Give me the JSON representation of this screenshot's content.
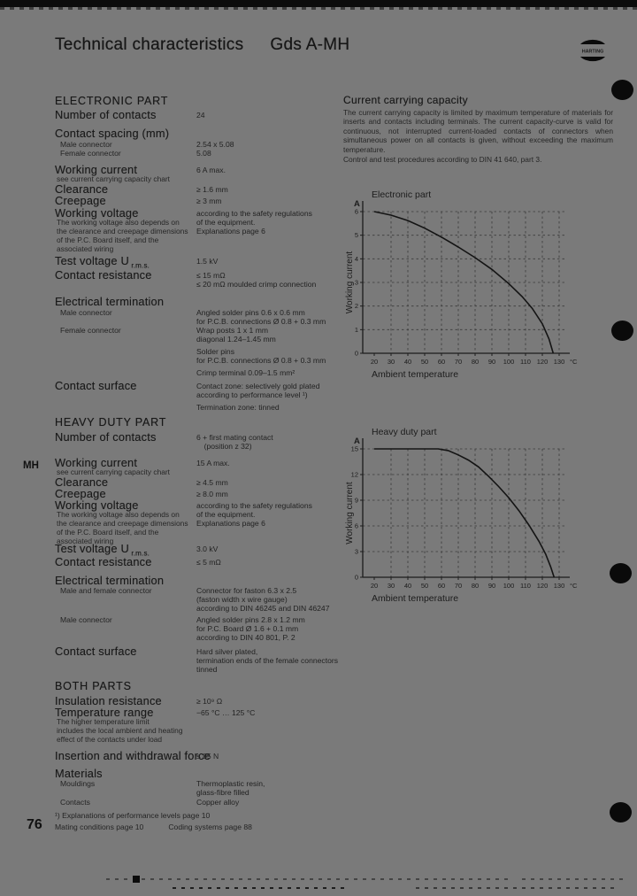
{
  "colors": {
    "background": "#7a7a7a",
    "ink": "#1d1d1d",
    "curve": "#141414",
    "grid": "#3a3a3a"
  },
  "header": {
    "title": "Technical characteristics",
    "product": "Gds A-MH",
    "logo": "HARTING"
  },
  "margin": {
    "tab": "MH",
    "page_number": "76"
  },
  "capacity_note": {
    "heading": "Current carrying capacity",
    "body": "The current carrying capacity is limited by maximum temperature of materials for inserts and contacts including terminals. The current capacity-curve is valid for continuous, not interrupted current-loaded contacts of connectors when simultaneous power on all contacts is given, without exceeding the maximum temperature.",
    "body2": "Control and test procedures according to DIN 41 640, part 3."
  },
  "sections": [
    {
      "id": "electronic",
      "heading": "ELECTRONIC PART",
      "rows": [
        {
          "label": "Number of contacts",
          "style": "lg",
          "value": [
            "24"
          ]
        },
        {
          "label": "Contact spacing (mm)",
          "style": "lg",
          "value": []
        },
        {
          "label": "Male connector",
          "style": "sm",
          "value": [
            "2.54 x 5.08"
          ]
        },
        {
          "label": "Female connector",
          "style": "sm",
          "value": [
            "5.08"
          ]
        },
        {
          "label": "Working current",
          "style": "lg",
          "note": [
            "see current carrying capacity chart"
          ],
          "value": [
            "6 A max."
          ]
        },
        {
          "label": "Clearance",
          "style": "lg",
          "value": [
            "≥ 1.6 mm"
          ]
        },
        {
          "label": "Creepage",
          "style": "lg",
          "value": [
            "≥ 3 mm"
          ]
        },
        {
          "label": "Working voltage",
          "style": "lg",
          "note": [
            "The working voltage also depends on",
            "the clearance and creepage dimensions",
            "of the P.C. Board itself, and the",
            "associated wiring"
          ],
          "value": [
            "according to the safety regulations",
            "of the equipment.",
            "Explanations page 6"
          ]
        },
        {
          "label": "Test voltage U",
          "label_sub": "r.m.s.",
          "style": "lg",
          "value": [
            "1.5 kV"
          ]
        },
        {
          "label": "Contact resistance",
          "style": "lg",
          "value": [
            "≤ 15 mΩ",
            "≤ 20 mΩ moulded crimp connection"
          ]
        },
        {
          "label": "Electrical termination",
          "style": "lg",
          "value": []
        },
        {
          "label": "Male connector",
          "style": "sm",
          "value": [
            "Angled solder pins 0.6 x 0.6 mm",
            "for P.C.B. connections Ø 0.8 + 0.3 mm"
          ]
        },
        {
          "label": "Female connector",
          "style": "sm",
          "value": [
            "Wrap posts 1 x 1 mm",
            "diagonal 1.24–1.45 mm",
            "",
            "Solder pins",
            "for P.C.B. connections Ø 0.8 + 0.3 mm",
            "",
            "Crimp terminal 0.09–1.5 mm²"
          ]
        },
        {
          "label": "Contact surface",
          "style": "lg",
          "value": [
            "Contact zone: selectively gold plated",
            "according to performance level ¹)",
            "",
            "Termination zone: tinned"
          ]
        }
      ]
    },
    {
      "id": "heavy-duty",
      "heading": "HEAVY DUTY PART",
      "rows": [
        {
          "label": "Number of contacts",
          "style": "lg",
          "value": [
            "6 + first mating contact",
            "  (position z 32)"
          ]
        },
        {
          "label": "Working current",
          "style": "lg",
          "note": [
            "see current carrying capacity chart"
          ],
          "value": [
            "15 A max."
          ]
        },
        {
          "label": "Clearance",
          "style": "lg",
          "value": [
            "≥ 4.5 mm"
          ]
        },
        {
          "label": "Creepage",
          "style": "lg",
          "value": [
            "≥ 8.0 mm"
          ]
        },
        {
          "label": "Working voltage",
          "style": "lg",
          "note": [
            "The working voltage also depends on",
            "the clearance and creepage dimensions",
            "of the P.C. Board itself, and the",
            "associated wiring"
          ],
          "value": [
            "according to the safety regulations",
            "of the equipment.",
            "Explanations page 6"
          ]
        },
        {
          "label": "Test voltage U",
          "label_sub": "r.m.s.",
          "style": "lg",
          "value": [
            "3.0 kV"
          ]
        },
        {
          "label": "Contact resistance",
          "style": "lg",
          "value": [
            "≤ 5 mΩ"
          ]
        },
        {
          "label": "Electrical termination",
          "style": "lg",
          "value": []
        },
        {
          "label": "Male and female connector",
          "style": "sm",
          "value": [
            "Connector for faston 6.3 x 2.5",
            "(faston width x wire gauge)",
            "according to DIN 46245 and DIN 46247"
          ]
        },
        {
          "label": "Male connector",
          "style": "sm",
          "value": [
            "Angled solder pins 2.8 x 1.2 mm",
            "for P.C. Board Ø 1.6 + 0.1 mm",
            "according to DIN 40 801, P. 2"
          ]
        },
        {
          "label": "Contact surface",
          "style": "lg",
          "value": [
            "Hard silver plated,",
            "termination ends of the female connectors",
            "tinned"
          ]
        }
      ]
    },
    {
      "id": "both",
      "heading": "BOTH PARTS",
      "rows": [
        {
          "label": "Insulation resistance",
          "style": "lg",
          "value": [
            "≥ 10⁹ Ω"
          ]
        },
        {
          "label": "Temperature range",
          "style": "lg",
          "note": [
            "The higher temperature limit",
            "includes the local ambient and heating",
            "effect of the contacts under load"
          ],
          "value": [
            "−65 °C … 125 °C"
          ]
        },
        {
          "label": "Insertion and withdrawal force",
          "style": "lg",
          "value": [
            "≤ 85 N"
          ]
        },
        {
          "label": "Materials",
          "style": "lg",
          "value": []
        },
        {
          "label": "Mouldings",
          "style": "sm",
          "value": [
            "Thermoplastic resin,",
            "glass-fibre filled"
          ]
        },
        {
          "label": "Contacts",
          "style": "sm",
          "value": [
            "Copper alloy"
          ]
        }
      ]
    }
  ],
  "footnote": "¹) Explanations of performance levels page 10",
  "footer_links": [
    "Mating conditions page 10",
    "Coding systems page 88"
  ],
  "chart_data": [
    {
      "type": "line",
      "title": "Electronic part",
      "ylabel": "Working current",
      "xlabel": "Ambient temperature",
      "y_unit": "A",
      "x_unit": "°C",
      "xticks": [
        20,
        30,
        40,
        50,
        60,
        70,
        80,
        90,
        100,
        110,
        120,
        130
      ],
      "yticks": [
        0,
        1,
        2,
        3,
        4,
        5,
        6
      ],
      "xlim": [
        20,
        130
      ],
      "ylim": [
        0,
        6
      ],
      "grid": true,
      "legend_position": "none",
      "series": [
        {
          "name": "derating curve",
          "points": [
            [
              20,
              6.0
            ],
            [
              30,
              5.85
            ],
            [
              40,
              5.62
            ],
            [
              50,
              5.3
            ],
            [
              60,
              4.92
            ],
            [
              70,
              4.5
            ],
            [
              80,
              4.05
            ],
            [
              90,
              3.55
            ],
            [
              100,
              2.95
            ],
            [
              108,
              2.4
            ],
            [
              114,
              1.9
            ],
            [
              120,
              1.25
            ],
            [
              124,
              0.6
            ],
            [
              126.5,
              0
            ]
          ]
        }
      ]
    },
    {
      "type": "line",
      "title": "Heavy duty part",
      "ylabel": "Working current",
      "xlabel": "Ambient temperature",
      "y_unit": "A",
      "x_unit": "°C",
      "xticks": [
        20,
        30,
        40,
        50,
        60,
        70,
        80,
        90,
        100,
        110,
        120,
        130
      ],
      "yticks": [
        0,
        3,
        6,
        9,
        12,
        15
      ],
      "xlim": [
        20,
        130
      ],
      "ylim": [
        0,
        15
      ],
      "grid": true,
      "legend_position": "none",
      "series": [
        {
          "name": "derating curve",
          "points": [
            [
              20,
              15
            ],
            [
              30,
              15
            ],
            [
              40,
              15
            ],
            [
              50,
              15
            ],
            [
              58,
              15
            ],
            [
              64,
              14.8
            ],
            [
              70,
              14.3
            ],
            [
              76,
              13.7
            ],
            [
              82,
              12.9
            ],
            [
              88,
              11.8
            ],
            [
              94,
              10.6
            ],
            [
              100,
              9.3
            ],
            [
              106,
              7.8
            ],
            [
              112,
              6.1
            ],
            [
              118,
              4.2
            ],
            [
              122,
              2.7
            ],
            [
              125,
              1.2
            ],
            [
              127,
              0
            ]
          ]
        }
      ]
    }
  ]
}
